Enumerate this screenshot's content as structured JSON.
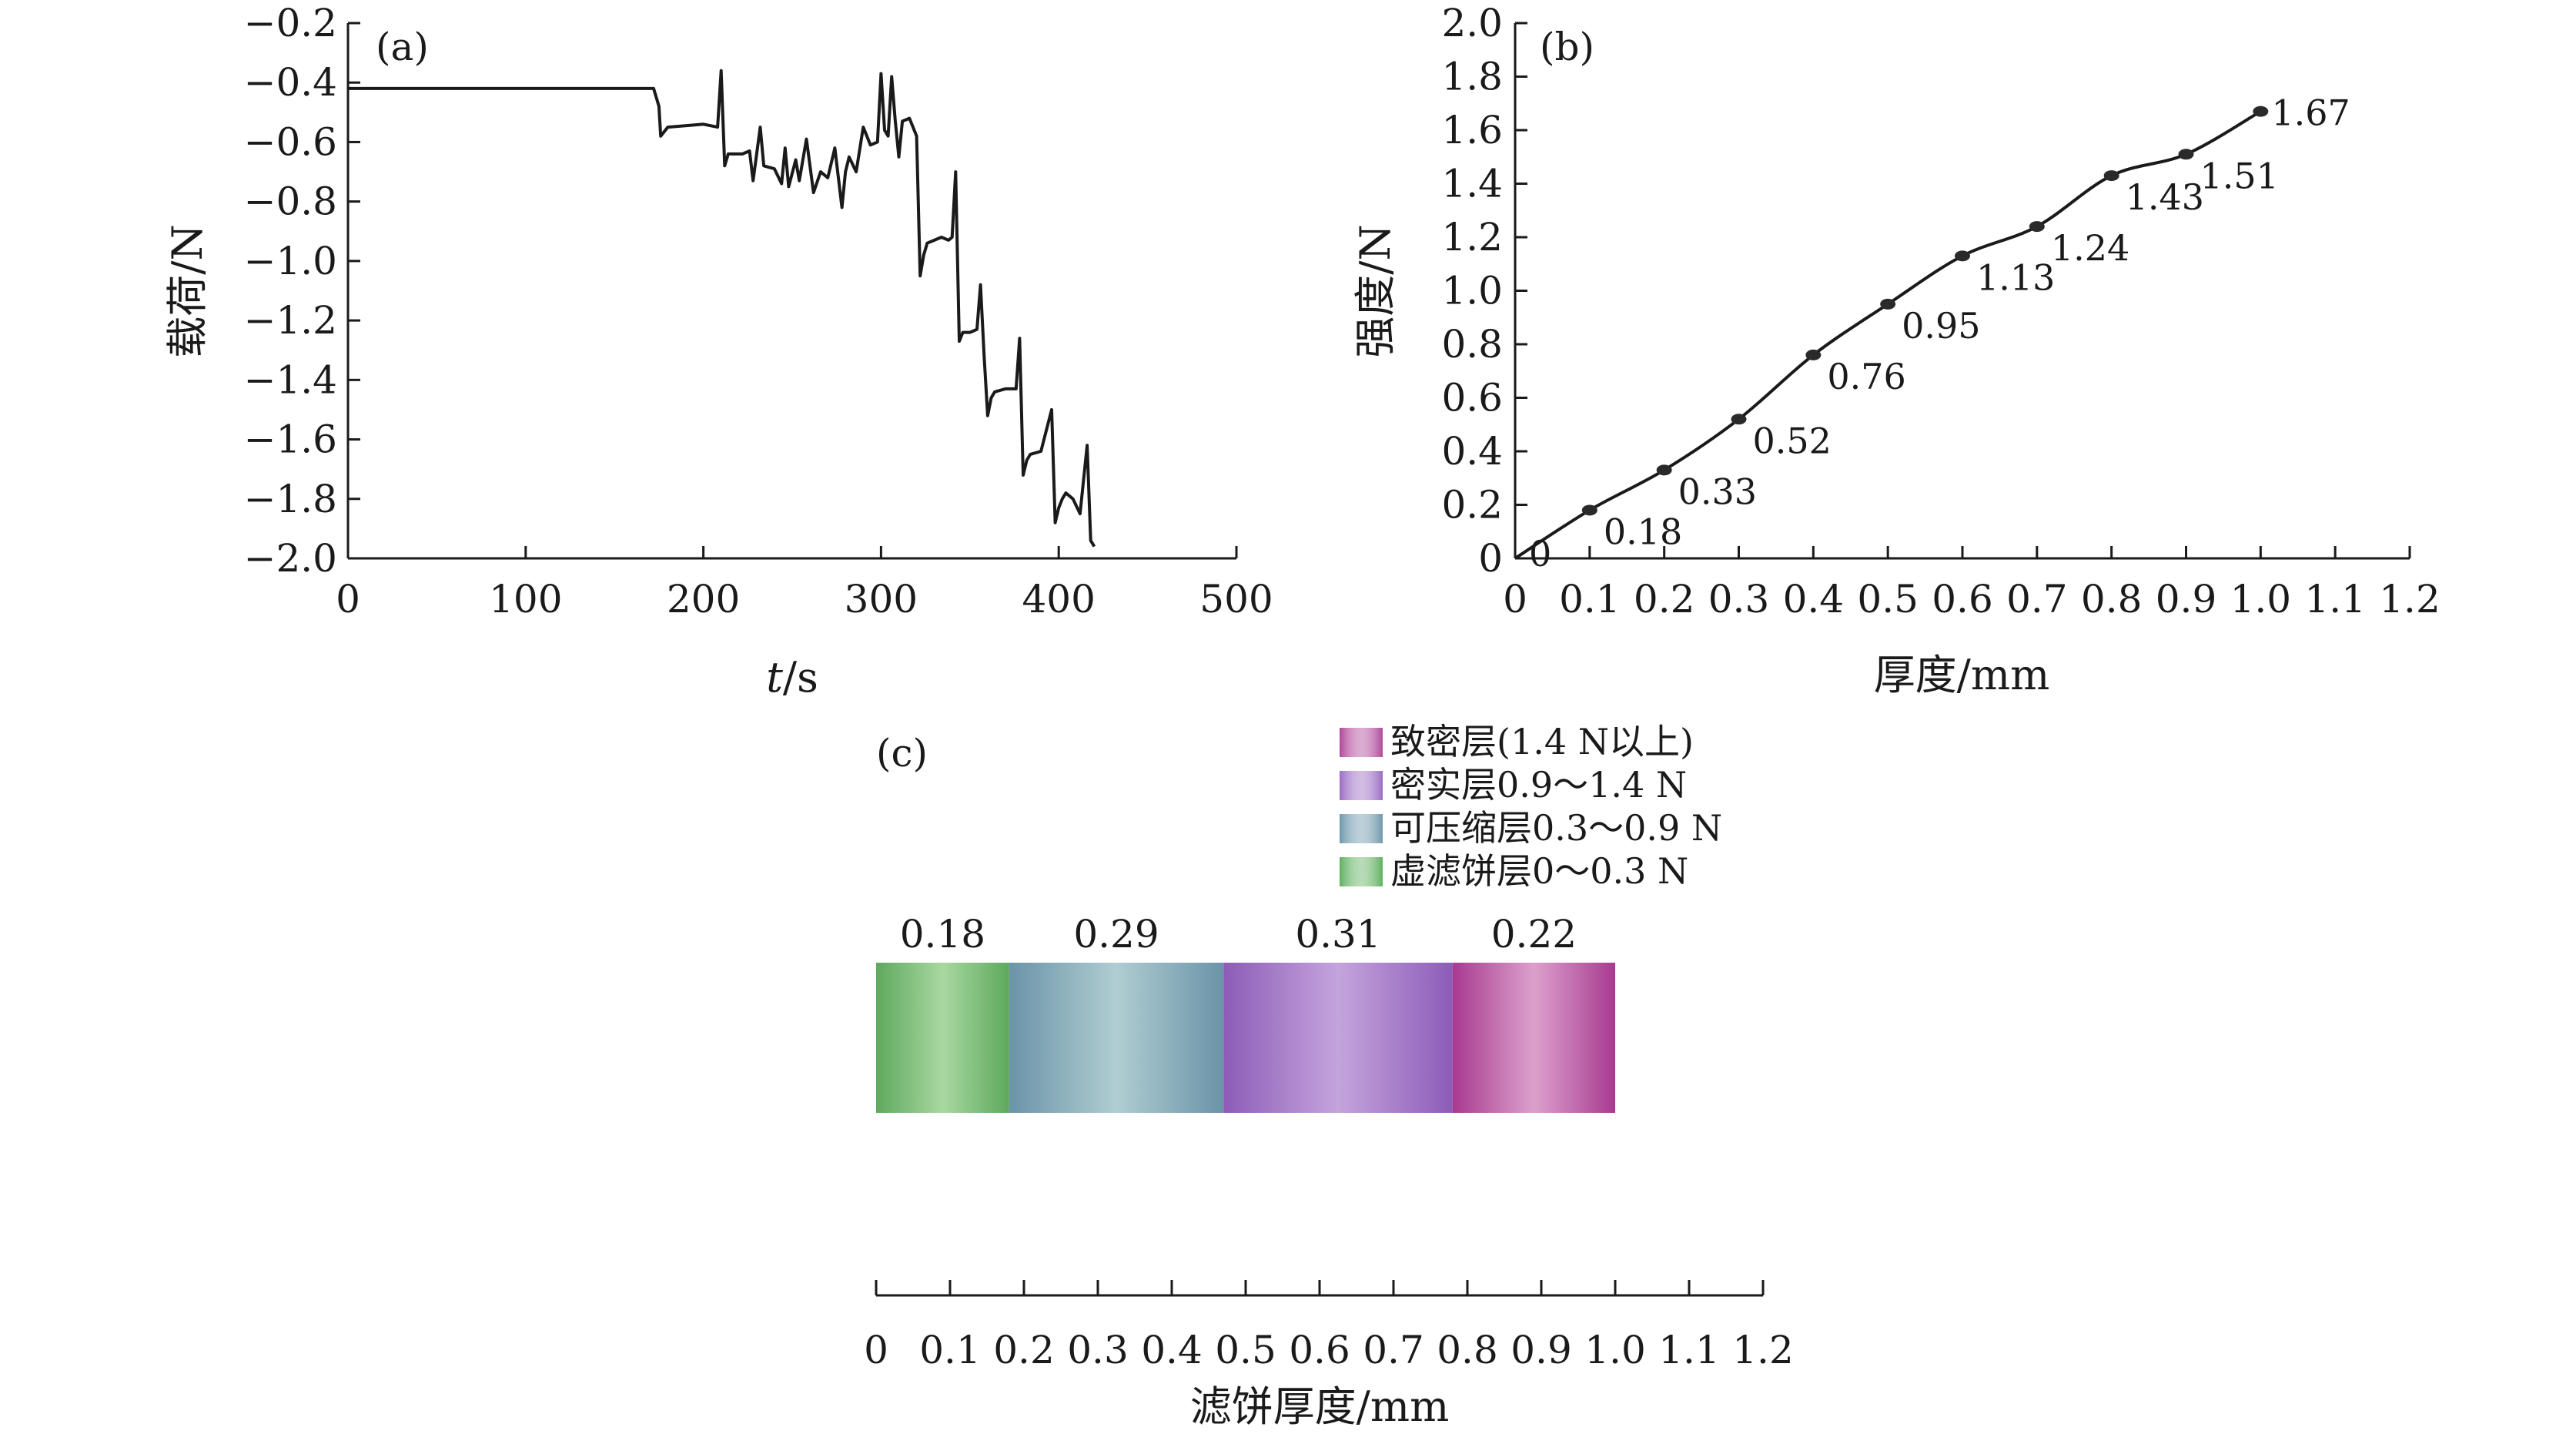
{
  "chart_data": [
    {
      "panel": "(a)",
      "type": "line",
      "xlabel_italic": "t",
      "xlabel_unit": "/s",
      "ylabel": "载荷/N",
      "xlim": [
        0,
        500
      ],
      "ylim": [
        -2.0,
        -0.2
      ],
      "x_ticks": [
        "0",
        "100",
        "200",
        "300",
        "400",
        "500"
      ],
      "y_ticks": [
        "−0.2",
        "−0.4",
        "−0.6",
        "−0.8",
        "−1.0",
        "−1.2",
        "−1.4",
        "−1.6",
        "−1.8",
        "−2.0"
      ],
      "series": [
        {
          "x": [
            0,
            172,
            175,
            176,
            180,
            200,
            208,
            210,
            212,
            214,
            222,
            226,
            228,
            232,
            234,
            240,
            244,
            246,
            248,
            252,
            254,
            258,
            262,
            266,
            270,
            274,
            278,
            280,
            282,
            286,
            290,
            294,
            298,
            300,
            302,
            304,
            306,
            308,
            310,
            312,
            316,
            320,
            322,
            324,
            326,
            330,
            334,
            338,
            340,
            342,
            344,
            346,
            350,
            354,
            356,
            358,
            360,
            362,
            364,
            370,
            376,
            378,
            380,
            382,
            384,
            390,
            396,
            398,
            400,
            402,
            404,
            408,
            412,
            416,
            418,
            420
          ],
          "y": [
            -0.42,
            -0.42,
            -0.48,
            -0.58,
            -0.55,
            -0.54,
            -0.55,
            -0.36,
            -0.68,
            -0.64,
            -0.64,
            -0.63,
            -0.73,
            -0.55,
            -0.68,
            -0.69,
            -0.74,
            -0.62,
            -0.75,
            -0.66,
            -0.73,
            -0.59,
            -0.77,
            -0.7,
            -0.72,
            -0.62,
            -0.82,
            -0.7,
            -0.65,
            -0.7,
            -0.55,
            -0.61,
            -0.6,
            -0.37,
            -0.56,
            -0.58,
            -0.38,
            -0.53,
            -0.65,
            -0.53,
            -0.52,
            -0.58,
            -1.05,
            -0.98,
            -0.94,
            -0.93,
            -0.92,
            -0.93,
            -0.92,
            -0.7,
            -1.27,
            -1.24,
            -1.24,
            -1.23,
            -1.08,
            -1.32,
            -1.52,
            -1.46,
            -1.44,
            -1.43,
            -1.43,
            -1.26,
            -1.72,
            -1.67,
            -1.65,
            -1.64,
            -1.5,
            -1.88,
            -1.83,
            -1.8,
            -1.78,
            -1.8,
            -1.85,
            -1.62,
            -1.94,
            -1.96
          ]
        }
      ]
    },
    {
      "panel": "(b)",
      "type": "line",
      "xlabel": "厚度/mm",
      "ylabel": "强度/N",
      "xlim": [
        0,
        1.2
      ],
      "ylim": [
        0,
        2.0
      ],
      "x_ticks": [
        "0",
        "0.1",
        "0.2",
        "0.3",
        "0.4",
        "0.5",
        "0.6",
        "0.7",
        "0.8",
        "0.9",
        "1.0",
        "1.1",
        "1.2"
      ],
      "y_ticks": [
        "0",
        "0.2",
        "0.4",
        "0.6",
        "0.8",
        "1.0",
        "1.2",
        "1.4",
        "1.6",
        "1.8",
        "2.0"
      ],
      "x": [
        0,
        0.1,
        0.2,
        0.3,
        0.4,
        0.5,
        0.6,
        0.7,
        0.8,
        0.9,
        1.0
      ],
      "y": [
        0,
        0.18,
        0.33,
        0.52,
        0.76,
        0.95,
        1.13,
        1.24,
        1.43,
        1.51,
        1.67
      ],
      "point_labels": [
        "0",
        "0.18",
        "0.33",
        "0.52",
        "0.76",
        "0.95",
        "1.13",
        "1.24",
        "1.43",
        "1.51",
        "1.67"
      ]
    },
    {
      "panel": "(c)",
      "type": "bar",
      "xlabel": "滤饼厚度/mm",
      "xlim": [
        0,
        1.2
      ],
      "x_ticks": [
        "0",
        "0.1",
        "0.2",
        "0.3",
        "0.4",
        "0.5",
        "0.6",
        "0.7",
        "0.8",
        "0.9",
        "1.0",
        "1.1",
        "1.2"
      ],
      "legend": [
        {
          "label": "致密层(1.4 N以上)",
          "color": "#b0489a"
        },
        {
          "label": "密实层0.9～1.4 N",
          "color": "#9a6cc4"
        },
        {
          "label": "可压缩层0.3～0.9 N",
          "color": "#6f98ac"
        },
        {
          "label": "虚滤饼层0～0.3 N",
          "color": "#5fb05f"
        }
      ],
      "segments": [
        {
          "value": 0.18,
          "label": "0.18",
          "layer": "虚滤饼层",
          "edge": "#5ea95e",
          "mid": "#a8d8a0"
        },
        {
          "value": 0.29,
          "label": "0.29",
          "layer": "可压缩层",
          "edge": "#6a94a8",
          "mid": "#b0cdd2"
        },
        {
          "value": 0.31,
          "label": "0.31",
          "layer": "密实层",
          "edge": "#8c5cb8",
          "mid": "#c4a4dc"
        },
        {
          "value": 0.22,
          "label": "0.22",
          "layer": "致密层",
          "edge": "#a83a90",
          "mid": "#dca0cc"
        }
      ]
    }
  ]
}
